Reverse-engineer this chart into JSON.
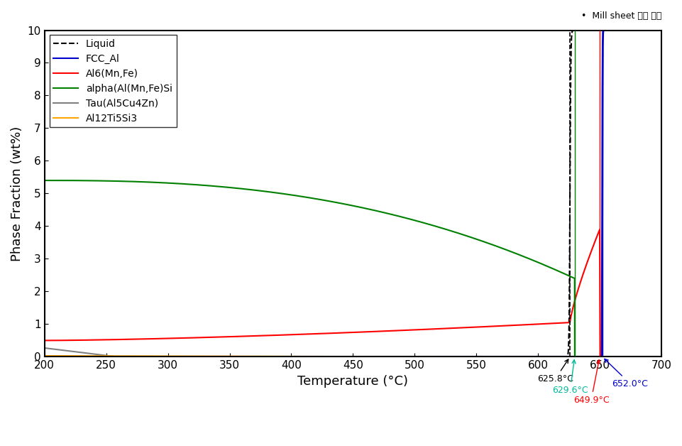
{
  "title": "",
  "xlabel": "Temperature (°C)",
  "ylabel": "Phase Fraction (wt%)",
  "xlim": [
    200,
    700
  ],
  "ylim": [
    0,
    10
  ],
  "xticks": [
    200,
    250,
    300,
    350,
    400,
    450,
    500,
    550,
    600,
    650,
    700
  ],
  "yticks": [
    0,
    1,
    2,
    3,
    4,
    5,
    6,
    7,
    8,
    9,
    10
  ],
  "legend_entries": [
    "Liquid",
    "FCC_Al",
    "Al6(Mn,Fe)",
    "alpha(Al(Mn,Fe)Si",
    "Tau(Al5Cu4Zn)",
    "Al12Ti5Si3"
  ],
  "legend_colors": [
    "black",
    "#0000cc",
    "red",
    "green",
    "gray",
    "orange"
  ],
  "legend_styles": [
    "dashed",
    "solid",
    "solid",
    "solid",
    "solid",
    "solid"
  ],
  "vline_dashed_x": 625.8,
  "vline_blue_x": 652.0,
  "vline_red_x": 649.9,
  "vline_green_x": 629.6,
  "annotation_625": "625.8°C",
  "annotation_629": "629.6°C",
  "annotation_649": "649.9°C",
  "annotation_652": "652.0°C",
  "note_text": "•  Mill sheet 조성 기준",
  "background_color": "white",
  "figsize": [
    9.61,
    6.28
  ],
  "dpi": 100
}
